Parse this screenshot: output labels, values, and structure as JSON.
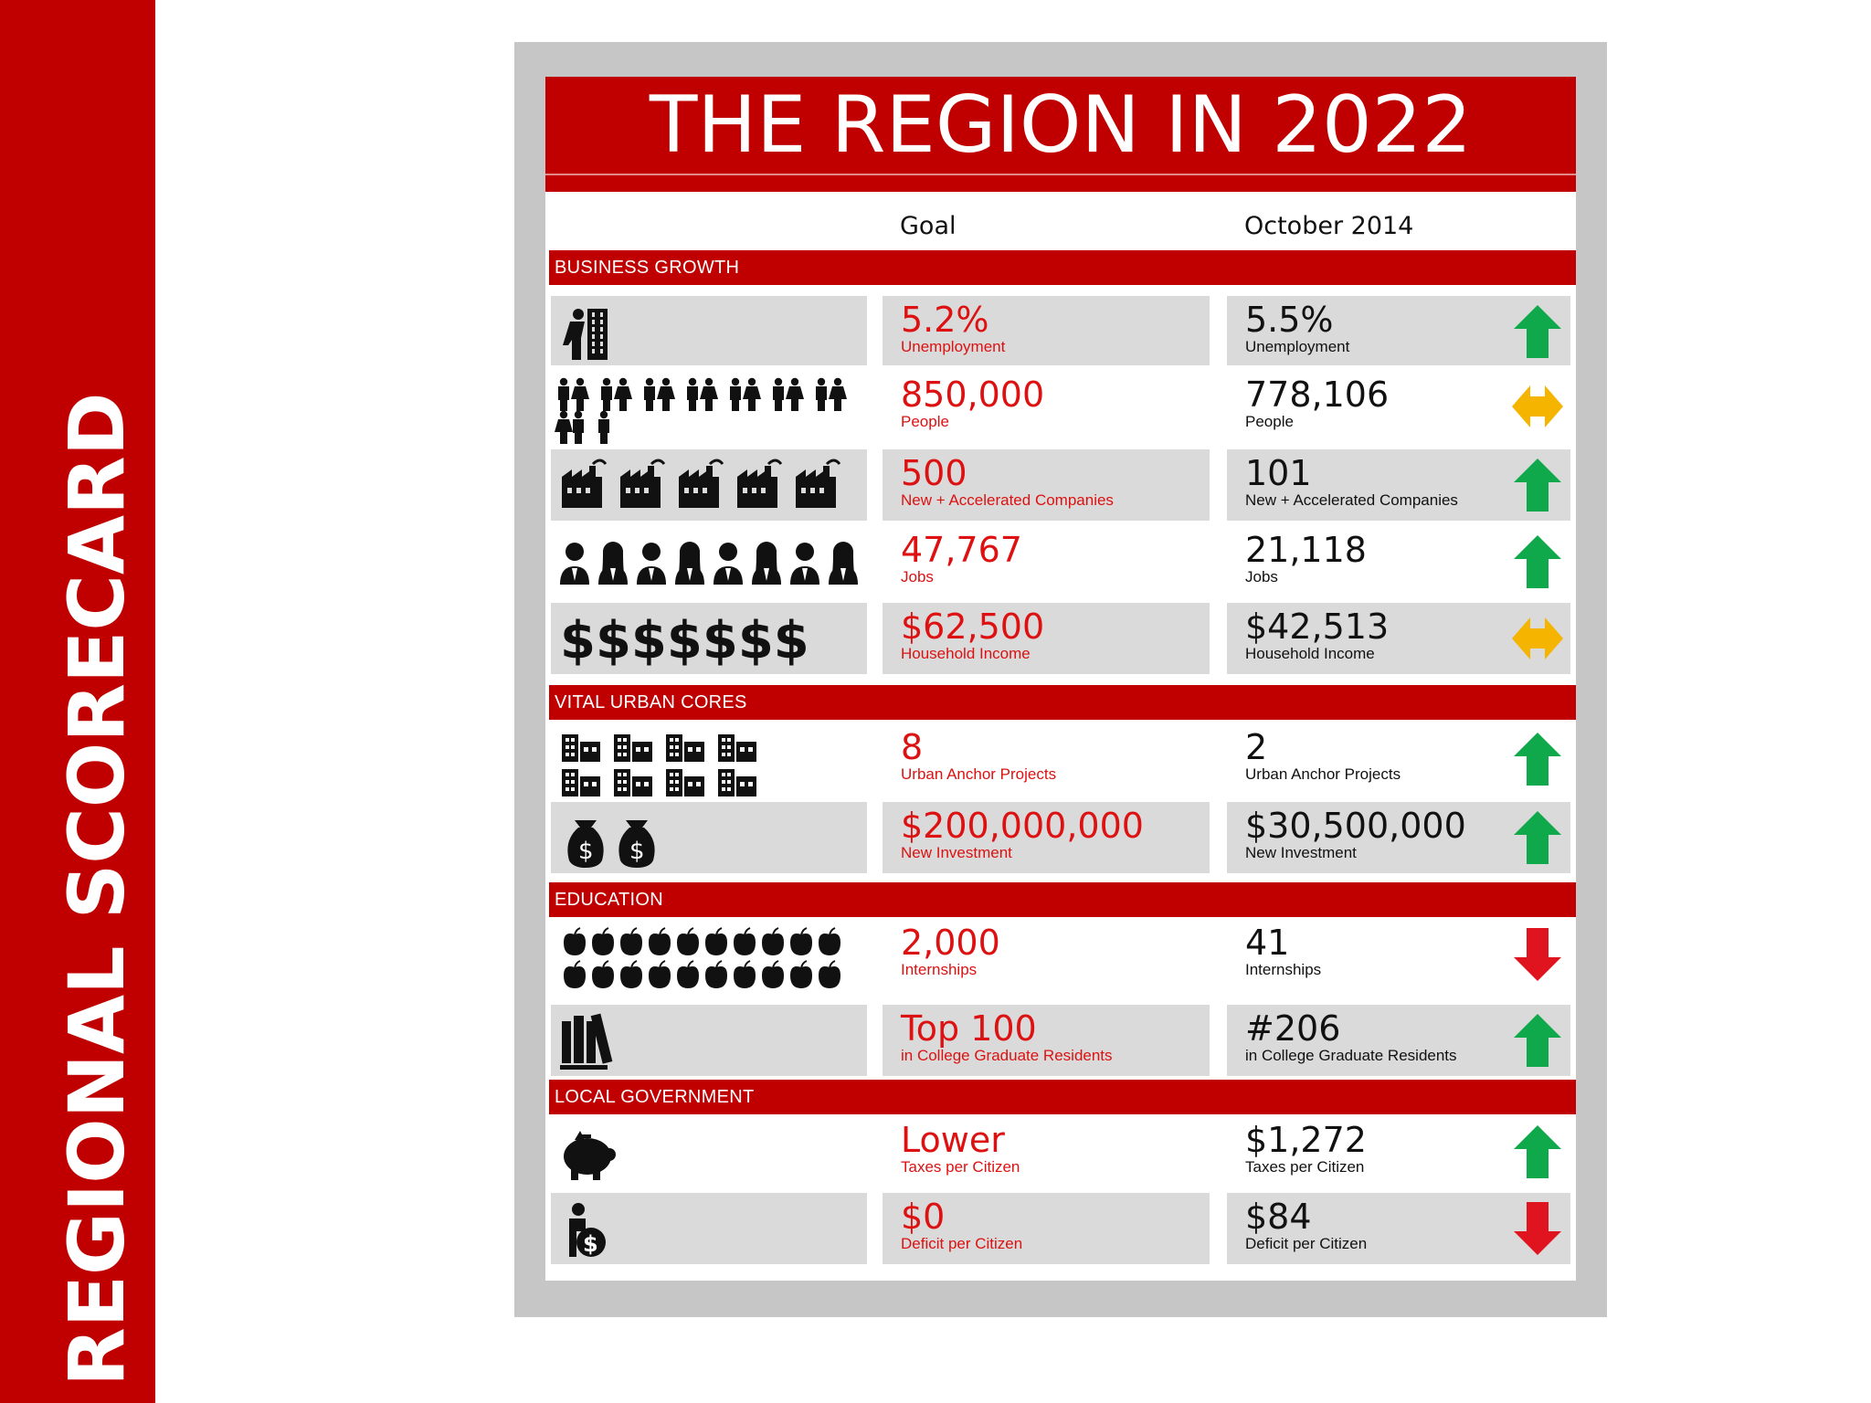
{
  "side_title": "REGIONAL SCORECARD",
  "title": "THE REGION IN 2022",
  "columns": {
    "goal": "Goal",
    "current": "October 2014"
  },
  "colors": {
    "brand_red": "#c00000",
    "goal_text": "#dd1111",
    "up": "#0fa84a",
    "down": "#e0141e",
    "flat": "#f5b400",
    "row_shade": "#dadada"
  },
  "sections": [
    {
      "label": "BUSINESS GROWTH"
    },
    {
      "label": "VITAL URBAN CORES"
    },
    {
      "label": "EDUCATION"
    },
    {
      "label": "LOCAL GOVERNMENT"
    }
  ],
  "rows": [
    {
      "icon": "unemployed-person-icon",
      "goal_value": "5.2%",
      "goal_label": "Unemployment",
      "current_value": "5.5%",
      "current_label": "Unemployment",
      "trend": "up"
    },
    {
      "icon": "people-icon",
      "goal_value": "850,000",
      "goal_label": "People",
      "current_value": "778,106",
      "current_label": "People",
      "trend": "flat"
    },
    {
      "icon": "factory-icon",
      "goal_value": "500",
      "goal_label": "New + Accelerated Companies",
      "current_value": "101",
      "current_label": "New + Accelerated Companies",
      "trend": "up"
    },
    {
      "icon": "worker-icon",
      "goal_value": "47,767",
      "goal_label": "Jobs",
      "current_value": "21,118",
      "current_label": "Jobs",
      "trend": "up"
    },
    {
      "icon": "dollar-sign-icon",
      "icon_text": "$$$$$$$",
      "goal_value": "$62,500",
      "goal_label": "Household Income",
      "current_value": "$42,513",
      "current_label": "Household Income",
      "trend": "flat"
    },
    {
      "icon": "building-icon",
      "goal_value": "8",
      "goal_label": "Urban Anchor Projects",
      "current_value": "2",
      "current_label": "Urban Anchor Projects",
      "trend": "up"
    },
    {
      "icon": "money-bag-icon",
      "goal_value": "$200,000,000",
      "goal_label": "New Investment",
      "current_value": "$30,500,000",
      "current_label": "New Investment",
      "trend": "up"
    },
    {
      "icon": "apple-icon",
      "goal_value": "2,000",
      "goal_label": "Internships",
      "current_value": "41",
      "current_label": "Internships",
      "trend": "down"
    },
    {
      "icon": "books-icon",
      "goal_value": "Top 100",
      "goal_label": "in College Graduate Residents",
      "current_value": "#206",
      "current_label": "in College Graduate Residents",
      "trend": "up"
    },
    {
      "icon": "piggy-bank-icon",
      "goal_value": "Lower",
      "goal_label": "Taxes per Citizen",
      "current_value": "$1,272",
      "current_label": "Taxes per Citizen",
      "trend": "up"
    },
    {
      "icon": "debt-person-icon",
      "goal_value": "$0",
      "goal_label": "Deficit per Citizen",
      "current_value": "$84",
      "current_label": "Deficit per Citizen",
      "trend": "down"
    }
  ]
}
